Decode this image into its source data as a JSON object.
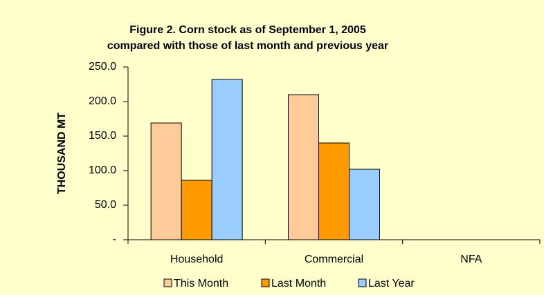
{
  "chart_data": {
    "type": "bar",
    "title": "Figure 2.  Corn stock as of September  1, 2005",
    "subtitle": "compared with those of last month and previous year",
    "y_label": "THOUSAND  MT",
    "categories": [
      "Household",
      "Commercial",
      "NFA"
    ],
    "series": [
      {
        "name": "This Month",
        "color": "#FFCC99",
        "values": [
          169,
          210,
          0
        ]
      },
      {
        "name": "Last Month",
        "color": "#FF9900",
        "values": [
          86,
          140,
          0
        ]
      },
      {
        "name": "Last Year",
        "color": "#99CCFF",
        "values": [
          232,
          102,
          0
        ]
      }
    ],
    "ylim": [
      0,
      250
    ],
    "yticks": [
      {
        "value": 0,
        "label": "-"
      },
      {
        "value": 50,
        "label": "50.0"
      },
      {
        "value": 100,
        "label": "100.0"
      },
      {
        "value": 150,
        "label": "150.0"
      },
      {
        "value": 200,
        "label": "200.0"
      },
      {
        "value": 250,
        "label": "250.0"
      }
    ],
    "legend": "bottom"
  }
}
